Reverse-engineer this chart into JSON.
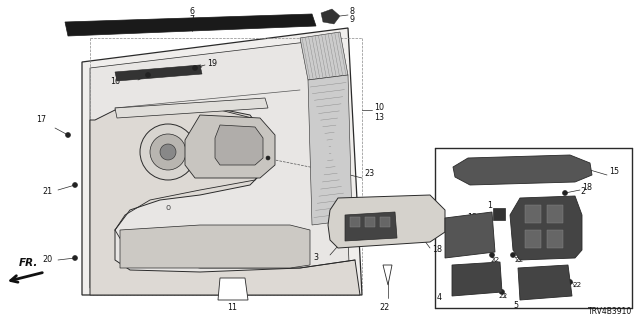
{
  "background_color": "#ffffff",
  "diagram_number": "TRV4B3910",
  "fig_width": 6.4,
  "fig_height": 3.2,
  "dpi": 100,
  "line_color": "#2a2a2a",
  "text_color": "#111111",
  "fs": 5.8,
  "fs_small": 5.2,
  "fs_big": 7.0
}
